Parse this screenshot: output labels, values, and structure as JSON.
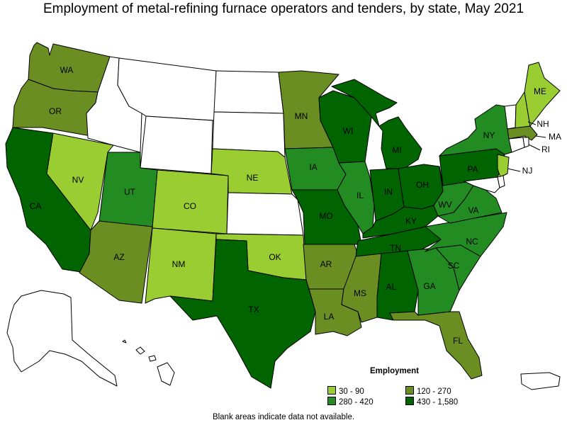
{
  "title": "Employment of metal-refining furnace operators and tenders, by state, May 2021",
  "legend": {
    "title": "Employment",
    "bins": [
      {
        "label": "30 - 90",
        "color": "#9acd32"
      },
      {
        "label": "120 - 270",
        "color": "#6b8e23"
      },
      {
        "label": "280 - 420",
        "color": "#228b22"
      },
      {
        "label": "430 - 1,580",
        "color": "#006400"
      }
    ]
  },
  "note": "Blank areas indicate data not available.",
  "colors": {
    "no_data": "#ffffff",
    "border": "#000000"
  },
  "states": [
    {
      "abbr": "WA",
      "bin": 1
    },
    {
      "abbr": "OR",
      "bin": 1
    },
    {
      "abbr": "CA",
      "bin": 3
    },
    {
      "abbr": "NV",
      "bin": 0
    },
    {
      "abbr": "ID",
      "bin": -1
    },
    {
      "abbr": "MT",
      "bin": -1
    },
    {
      "abbr": "WY",
      "bin": -1
    },
    {
      "abbr": "UT",
      "bin": 2
    },
    {
      "abbr": "AZ",
      "bin": 1
    },
    {
      "abbr": "CO",
      "bin": 0
    },
    {
      "abbr": "NM",
      "bin": 0
    },
    {
      "abbr": "ND",
      "bin": -1
    },
    {
      "abbr": "SD",
      "bin": -1
    },
    {
      "abbr": "NE",
      "bin": 0
    },
    {
      "abbr": "KS",
      "bin": -1
    },
    {
      "abbr": "OK",
      "bin": 0
    },
    {
      "abbr": "TX",
      "bin": 3
    },
    {
      "abbr": "MN",
      "bin": 1
    },
    {
      "abbr": "IA",
      "bin": 2
    },
    {
      "abbr": "MO",
      "bin": 3
    },
    {
      "abbr": "AR",
      "bin": 1
    },
    {
      "abbr": "LA",
      "bin": 1
    },
    {
      "abbr": "WI",
      "bin": 3
    },
    {
      "abbr": "IL",
      "bin": 2
    },
    {
      "abbr": "MI",
      "bin": 3
    },
    {
      "abbr": "IN",
      "bin": 3
    },
    {
      "abbr": "OH",
      "bin": 3
    },
    {
      "abbr": "KY",
      "bin": 3
    },
    {
      "abbr": "TN",
      "bin": 3
    },
    {
      "abbr": "MS",
      "bin": 1
    },
    {
      "abbr": "AL",
      "bin": 3
    },
    {
      "abbr": "GA",
      "bin": 2
    },
    {
      "abbr": "FL",
      "bin": 1
    },
    {
      "abbr": "SC",
      "bin": 2
    },
    {
      "abbr": "NC",
      "bin": 2
    },
    {
      "abbr": "VA",
      "bin": 2
    },
    {
      "abbr": "WV",
      "bin": 2
    },
    {
      "abbr": "PA",
      "bin": 3
    },
    {
      "abbr": "NY",
      "bin": 2
    },
    {
      "abbr": "NJ",
      "bin": 0
    },
    {
      "abbr": "ME",
      "bin": 0
    },
    {
      "abbr": "NH",
      "bin": 0
    },
    {
      "abbr": "VT",
      "bin": -1
    },
    {
      "abbr": "MA",
      "bin": 1
    },
    {
      "abbr": "RI",
      "bin": -1
    },
    {
      "abbr": "CT",
      "bin": -1
    },
    {
      "abbr": "DE",
      "bin": -1
    },
    {
      "abbr": "MD",
      "bin": -1
    },
    {
      "abbr": "AK",
      "bin": -1
    },
    {
      "abbr": "HI",
      "bin": -1
    },
    {
      "abbr": "PR",
      "bin": -1
    }
  ]
}
